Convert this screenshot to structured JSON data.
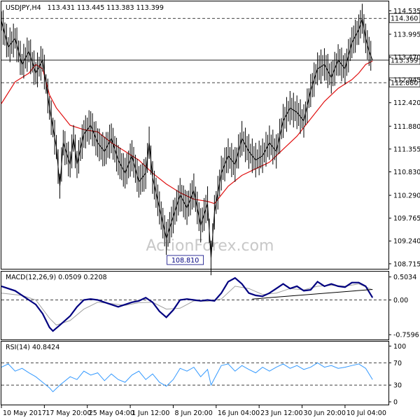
{
  "chart_data": {
    "type": "line",
    "symbol_label": "USDJPY,H4",
    "ohlc_label": "113.431 113.445 113.383 113.399",
    "watermark": "ActionForex.com",
    "colors": {
      "price": "#000000",
      "ma": "#e01010",
      "macd": "#000080",
      "signal": "#a0a0a0",
      "rsi": "#3399ff",
      "level": "#000000"
    },
    "price_panel": {
      "ylim": [
        108.6,
        114.75
      ],
      "ticks": [
        {
          "v": 114.535,
          "label": "114.535"
        },
        {
          "v": 113.995,
          "label": "113.995"
        },
        {
          "v": 113.47,
          "label": "113.470"
        },
        {
          "v": 112.945,
          "label": "112.945"
        },
        {
          "v": 112.42,
          "label": "112.420"
        },
        {
          "v": 111.88,
          "label": "111.880"
        },
        {
          "v": 111.355,
          "label": "111.355"
        },
        {
          "v": 110.83,
          "label": "110.830"
        },
        {
          "v": 110.29,
          "label": "110.290"
        },
        {
          "v": 109.765,
          "label": "109.765"
        },
        {
          "v": 109.24,
          "label": "109.240"
        },
        {
          "v": 108.715,
          "label": "108.715"
        }
      ],
      "levels": [
        {
          "v": 114.36,
          "label": "114.360",
          "style": "dashed"
        },
        {
          "v": 113.399,
          "label": "113.399",
          "style": "solid"
        },
        {
          "v": 112.88,
          "label": "112.880",
          "style": "dashed"
        }
      ],
      "low_label": {
        "x": 53.5,
        "v": 108.81,
        "label": "108.810"
      },
      "price_points": [
        [
          0,
          114.3
        ],
        [
          2,
          113.7
        ],
        [
          4,
          113.9
        ],
        [
          6,
          113.3
        ],
        [
          8,
          113.6
        ],
        [
          10,
          113.1
        ],
        [
          12,
          113.4
        ],
        [
          14,
          112.3
        ],
        [
          16,
          111.4
        ],
        [
          17,
          110.5
        ],
        [
          18,
          111.5
        ],
        [
          20,
          111.0
        ],
        [
          21,
          111.6
        ],
        [
          22,
          111.0
        ],
        [
          24,
          111.7
        ],
        [
          26,
          111.9
        ],
        [
          28,
          111.5
        ],
        [
          30,
          111.3
        ],
        [
          32,
          111.6
        ],
        [
          34,
          111.1
        ],
        [
          36,
          110.8
        ],
        [
          38,
          111.2
        ],
        [
          40,
          110.6
        ],
        [
          42,
          110.8
        ],
        [
          43,
          111.5
        ],
        [
          44,
          110.7
        ],
        [
          46,
          110.0
        ],
        [
          48,
          109.3
        ],
        [
          50,
          109.8
        ],
        [
          52,
          110.3
        ],
        [
          54,
          110.0
        ],
        [
          56,
          110.4
        ],
        [
          58,
          109.6
        ],
        [
          60,
          110.1
        ],
        [
          61,
          108.85
        ],
        [
          62,
          109.9
        ],
        [
          64,
          110.8
        ],
        [
          66,
          111.2
        ],
        [
          68,
          111.0
        ],
        [
          70,
          111.6
        ],
        [
          72,
          111.3
        ],
        [
          74,
          111.1
        ],
        [
          76,
          111.2
        ],
        [
          78,
          111.5
        ],
        [
          80,
          111.3
        ],
        [
          82,
          112.0
        ],
        [
          84,
          112.3
        ],
        [
          86,
          112.2
        ],
        [
          88,
          112.0
        ],
        [
          90,
          112.7
        ],
        [
          92,
          113.2
        ],
        [
          94,
          113.3
        ],
        [
          96,
          113.0
        ],
        [
          98,
          113.4
        ],
        [
          100,
          113.2
        ],
        [
          102,
          113.8
        ],
        [
          104,
          114.1
        ],
        [
          105,
          114.35
        ],
        [
          106,
          113.9
        ],
        [
          107,
          113.6
        ],
        [
          108,
          113.4
        ]
      ],
      "ma_points": [
        [
          0,
          112.4
        ],
        [
          4,
          112.9
        ],
        [
          8,
          113.1
        ],
        [
          10,
          113.3
        ],
        [
          12,
          113.2
        ],
        [
          14,
          112.6
        ],
        [
          16,
          112.3
        ],
        [
          18,
          112.1
        ],
        [
          20,
          111.9
        ],
        [
          24,
          111.8
        ],
        [
          28,
          111.75
        ],
        [
          32,
          111.5
        ],
        [
          36,
          111.3
        ],
        [
          40,
          111.1
        ],
        [
          44,
          110.8
        ],
        [
          48,
          110.55
        ],
        [
          52,
          110.35
        ],
        [
          56,
          110.2
        ],
        [
          60,
          110.15
        ],
        [
          62,
          110.1
        ],
        [
          64,
          110.3
        ],
        [
          66,
          110.5
        ],
        [
          70,
          110.75
        ],
        [
          74,
          110.9
        ],
        [
          78,
          111.05
        ],
        [
          82,
          111.35
        ],
        [
          86,
          111.65
        ],
        [
          88,
          111.85
        ],
        [
          90,
          112.05
        ],
        [
          94,
          112.45
        ],
        [
          98,
          112.75
        ],
        [
          102,
          112.95
        ],
        [
          104,
          113.1
        ],
        [
          106,
          113.3
        ],
        [
          108,
          113.38
        ]
      ]
    },
    "macd_panel": {
      "label": "MACD(12,26,9) 0.0509 0.2208",
      "ylim": [
        -0.88,
        0.62
      ],
      "ticks": [
        {
          "v": 0.5034,
          "label": "0.5034"
        },
        {
          "v": 0.0,
          "label": "0.00"
        },
        {
          "v": -0.7596,
          "label": "-0.7596"
        }
      ],
      "zero_line": 0.0,
      "trendline": [
        [
          73,
          0.02
        ],
        [
          108,
          0.23
        ]
      ],
      "macd_points": [
        [
          0,
          0.3
        ],
        [
          4,
          0.2
        ],
        [
          8,
          0.0
        ],
        [
          10,
          -0.1
        ],
        [
          12,
          -0.3
        ],
        [
          14,
          -0.6
        ],
        [
          15,
          -0.68
        ],
        [
          17,
          -0.55
        ],
        [
          20,
          -0.35
        ],
        [
          22,
          -0.15
        ],
        [
          24,
          0.0
        ],
        [
          26,
          0.02
        ],
        [
          28,
          0.0
        ],
        [
          30,
          -0.05
        ],
        [
          34,
          -0.15
        ],
        [
          38,
          -0.05
        ],
        [
          40,
          -0.02
        ],
        [
          42,
          0.05
        ],
        [
          44,
          -0.05
        ],
        [
          46,
          -0.25
        ],
        [
          48,
          -0.38
        ],
        [
          50,
          -0.22
        ],
        [
          52,
          0.0
        ],
        [
          54,
          0.02
        ],
        [
          56,
          0.0
        ],
        [
          58,
          -0.02
        ],
        [
          60,
          0.0
        ],
        [
          62,
          -0.02
        ],
        [
          64,
          0.15
        ],
        [
          66,
          0.4
        ],
        [
          68,
          0.48
        ],
        [
          70,
          0.35
        ],
        [
          72,
          0.15
        ],
        [
          74,
          0.1
        ],
        [
          76,
          0.08
        ],
        [
          78,
          0.15
        ],
        [
          80,
          0.25
        ],
        [
          82,
          0.35
        ],
        [
          84,
          0.25
        ],
        [
          86,
          0.3
        ],
        [
          88,
          0.2
        ],
        [
          90,
          0.22
        ],
        [
          92,
          0.4
        ],
        [
          94,
          0.3
        ],
        [
          96,
          0.35
        ],
        [
          98,
          0.3
        ],
        [
          100,
          0.28
        ],
        [
          102,
          0.38
        ],
        [
          104,
          0.38
        ],
        [
          106,
          0.3
        ],
        [
          108,
          0.05
        ]
      ],
      "signal_points": [
        [
          0,
          0.15
        ],
        [
          6,
          0.1
        ],
        [
          10,
          0.0
        ],
        [
          14,
          -0.4
        ],
        [
          16,
          -0.55
        ],
        [
          20,
          -0.45
        ],
        [
          24,
          -0.2
        ],
        [
          28,
          -0.05
        ],
        [
          32,
          -0.08
        ],
        [
          36,
          -0.12
        ],
        [
          40,
          -0.06
        ],
        [
          44,
          -0.05
        ],
        [
          48,
          -0.2
        ],
        [
          52,
          -0.18
        ],
        [
          56,
          -0.02
        ],
        [
          60,
          -0.03
        ],
        [
          64,
          0.02
        ],
        [
          68,
          0.3
        ],
        [
          72,
          0.25
        ],
        [
          76,
          0.12
        ],
        [
          80,
          0.15
        ],
        [
          84,
          0.25
        ],
        [
          88,
          0.22
        ],
        [
          92,
          0.3
        ],
        [
          96,
          0.32
        ],
        [
          100,
          0.3
        ],
        [
          104,
          0.35
        ],
        [
          108,
          0.22
        ]
      ]
    },
    "rsi_panel": {
      "label": "RSI(14) 40.8424",
      "ylim": [
        0,
        100
      ],
      "ticks": [
        {
          "v": 100,
          "label": "100"
        },
        {
          "v": 70,
          "label": "70"
        },
        {
          "v": 30,
          "label": "30"
        },
        {
          "v": 0,
          "label": "0"
        }
      ],
      "levels": [
        70,
        30
      ],
      "rsi_points": [
        [
          0,
          62
        ],
        [
          2,
          68
        ],
        [
          4,
          55
        ],
        [
          6,
          60
        ],
        [
          8,
          52
        ],
        [
          10,
          45
        ],
        [
          12,
          35
        ],
        [
          14,
          25
        ],
        [
          15,
          18
        ],
        [
          17,
          30
        ],
        [
          20,
          45
        ],
        [
          22,
          40
        ],
        [
          24,
          55
        ],
        [
          26,
          48
        ],
        [
          28,
          52
        ],
        [
          30,
          38
        ],
        [
          32,
          50
        ],
        [
          34,
          40
        ],
        [
          36,
          35
        ],
        [
          38,
          48
        ],
        [
          40,
          55
        ],
        [
          42,
          40
        ],
        [
          44,
          50
        ],
        [
          46,
          35
        ],
        [
          48,
          28
        ],
        [
          50,
          40
        ],
        [
          52,
          60
        ],
        [
          54,
          55
        ],
        [
          56,
          62
        ],
        [
          58,
          45
        ],
        [
          60,
          58
        ],
        [
          61,
          30
        ],
        [
          62,
          42
        ],
        [
          64,
          65
        ],
        [
          66,
          68
        ],
        [
          68,
          55
        ],
        [
          70,
          65
        ],
        [
          72,
          58
        ],
        [
          74,
          52
        ],
        [
          76,
          62
        ],
        [
          78,
          55
        ],
        [
          80,
          62
        ],
        [
          82,
          68
        ],
        [
          84,
          60
        ],
        [
          86,
          65
        ],
        [
          88,
          58
        ],
        [
          90,
          62
        ],
        [
          92,
          70
        ],
        [
          94,
          62
        ],
        [
          96,
          65
        ],
        [
          98,
          60
        ],
        [
          100,
          62
        ],
        [
          102,
          65
        ],
        [
          104,
          68
        ],
        [
          106,
          60
        ],
        [
          108,
          40
        ]
      ]
    },
    "x_axis": {
      "range": [
        0,
        110
      ],
      "ticks": [
        {
          "x": 0,
          "label": "10 May 2017"
        },
        {
          "x": 12.5,
          "label": "17 May 20:00"
        },
        {
          "x": 25,
          "label": "25 May 04:00"
        },
        {
          "x": 37.5,
          "label": "1 Jun 12:00"
        },
        {
          "x": 50,
          "label": "8 Jun 20:00"
        },
        {
          "x": 62.5,
          "label": "16 Jun 04:00"
        },
        {
          "x": 75,
          "label": "23 Jun 12:00"
        },
        {
          "x": 87.5,
          "label": "30 Jun 20:00"
        },
        {
          "x": 100,
          "label": "10 Jul 04:00"
        }
      ]
    }
  }
}
